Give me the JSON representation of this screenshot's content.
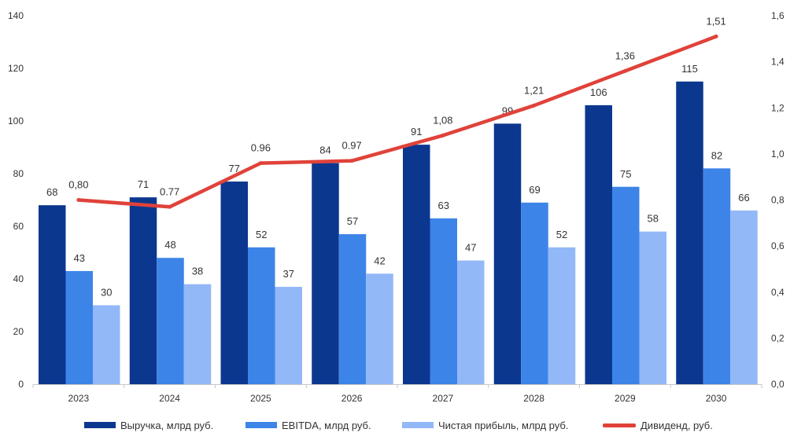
{
  "chart_data": {
    "type": "bar",
    "categories": [
      "2023",
      "2024",
      "2025",
      "2026",
      "2027",
      "2028",
      "2029",
      "2030"
    ],
    "series": [
      {
        "name": "Выручка, млрд руб.",
        "type": "bar",
        "axis": "left",
        "color": "#0b378f",
        "values": [
          68,
          71,
          77,
          84,
          91,
          99,
          106,
          115
        ],
        "labels": [
          "68",
          "71",
          "77",
          "84",
          "91",
          "99",
          "106",
          "115"
        ]
      },
      {
        "name": "EBITDA, млрд руб.",
        "type": "bar",
        "axis": "left",
        "color": "#3d84e8",
        "values": [
          43,
          48,
          52,
          57,
          63,
          69,
          75,
          82
        ],
        "labels": [
          "43",
          "48",
          "52",
          "57",
          "63",
          "69",
          "75",
          "82"
        ]
      },
      {
        "name": "Чистая прибыль, млрд руб.",
        "type": "bar",
        "axis": "left",
        "color": "#93b8f7",
        "values": [
          30,
          38,
          37,
          42,
          47,
          52,
          58,
          66
        ],
        "labels": [
          "30",
          "38",
          "37",
          "42",
          "47",
          "52",
          "58",
          "66"
        ]
      },
      {
        "name": "Дивиденд, руб.",
        "type": "line",
        "axis": "right",
        "color": "#e0423a",
        "values": [
          0.8,
          0.77,
          0.96,
          0.97,
          1.08,
          1.21,
          1.36,
          1.51
        ],
        "labels": [
          "0,80",
          "0.77",
          "0.96",
          "0.97",
          "1,08",
          "1,21",
          "1,36",
          "1,51"
        ]
      }
    ],
    "y_left": {
      "min": 0,
      "max": 140,
      "ticks": [
        "0",
        "20",
        "40",
        "60",
        "80",
        "100",
        "120",
        "140"
      ]
    },
    "y_right": {
      "min": 0,
      "max": 1.6,
      "ticks": [
        "0,0",
        "0,2",
        "0,4",
        "0,6",
        "0,8",
        "1,0",
        "1,2",
        "1,4",
        "1,6"
      ]
    },
    "legend_position": "bottom",
    "grid": false
  }
}
